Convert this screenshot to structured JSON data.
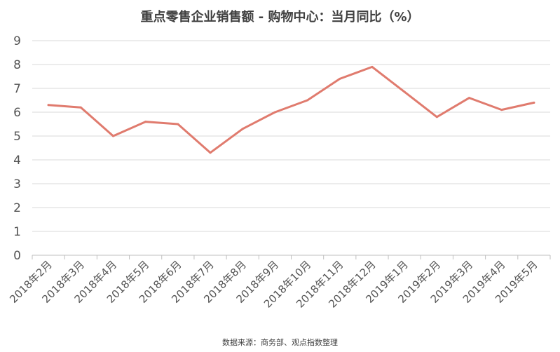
{
  "chart_data": {
    "type": "line",
    "title": "重点零售企业销售额 - 购物中心：当月同比（%）",
    "source": "数据来源：商务部、观点指数整理",
    "categories": [
      "2018年2月",
      "2018年3月",
      "2018年4月",
      "2018年5月",
      "2018年6月",
      "2018年7月",
      "2018年8月",
      "2018年9月",
      "2018年10月",
      "2018年11月",
      "2018年12月",
      "2019年1月",
      "2019年2月",
      "2019年3月",
      "2019年4月",
      "2019年5月"
    ],
    "series": [
      {
        "name": "",
        "color": "#E07B6E",
        "values": [
          6.3,
          6.2,
          5.0,
          5.6,
          5.5,
          4.3,
          5.3,
          6.0,
          6.5,
          7.4,
          7.9,
          6.85,
          5.8,
          6.6,
          6.1,
          6.4
        ]
      }
    ],
    "yticks": [
      0,
      1,
      2,
      3,
      4,
      5,
      6,
      7,
      8,
      9
    ],
    "ylim": [
      0,
      9
    ],
    "grid": true,
    "legend": "none"
  }
}
